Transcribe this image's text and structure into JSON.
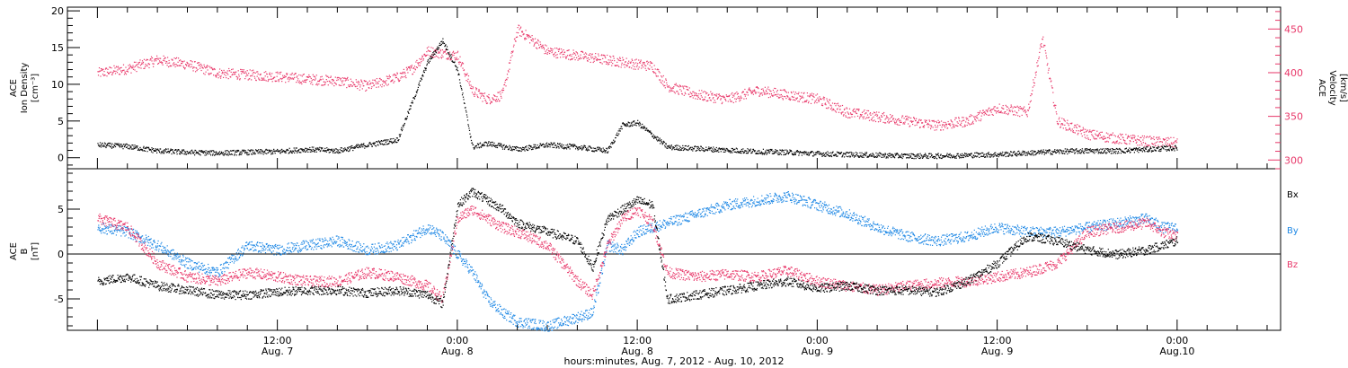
{
  "colors": {
    "black": "#000000",
    "pink": "#e8386a",
    "blue": "#1e88e5"
  },
  "chart_data": [
    {
      "type": "scatter",
      "panel": "top",
      "ylabel": [
        "ACE",
        "Ion Density",
        "[cm⁻³]"
      ],
      "ylim": [
        -1.5,
        20.5
      ],
      "yticks": [
        "0",
        "5",
        "10",
        "15",
        "20"
      ],
      "ylabel_right": [
        "ACE",
        "Velocity",
        "[km/s]"
      ],
      "ylim_right": [
        290,
        475
      ],
      "yticks_right": [
        "300",
        "350",
        "400",
        "450"
      ],
      "series": [
        {
          "axis": "left",
          "color": "#000000",
          "x_hours": [
            0,
            2,
            4,
            6,
            8,
            10,
            12,
            14,
            16,
            18,
            20,
            22,
            23,
            24,
            25,
            26,
            28,
            30,
            32,
            34,
            35,
            36,
            38,
            40,
            42,
            44,
            46,
            48,
            50,
            52,
            54,
            56,
            58,
            60,
            62,
            64,
            66,
            68,
            69,
            70,
            71,
            72
          ],
          "values": [
            1.8,
            1.6,
            1.0,
            0.8,
            0.7,
            0.8,
            0.9,
            1.2,
            1.0,
            1.8,
            2.5,
            13,
            16,
            12,
            1.5,
            2.0,
            1.2,
            1.8,
            1.5,
            1.0,
            4.5,
            4.8,
            1.5,
            1.3,
            1.1,
            0.9,
            0.8,
            0.6,
            0.5,
            0.4,
            0.3,
            0.3,
            0.4,
            0.5,
            0.7,
            0.9,
            1.0,
            1.0,
            1.1,
            1.2,
            1.3,
            1.4
          ]
        },
        {
          "axis": "right",
          "color": "#e8386a",
          "x_hours": [
            0,
            2,
            4,
            6,
            8,
            10,
            12,
            14,
            16,
            18,
            20,
            21,
            22,
            24,
            25,
            26,
            27,
            28,
            30,
            32,
            34,
            36,
            37,
            38,
            40,
            42,
            44,
            46,
            48,
            50,
            52,
            54,
            56,
            58,
            60,
            62,
            63,
            64,
            66,
            68,
            70,
            72
          ],
          "values": [
            400,
            405,
            415,
            410,
            400,
            398,
            396,
            393,
            391,
            385,
            395,
            405,
            425,
            420,
            380,
            370,
            375,
            450,
            425,
            420,
            415,
            410,
            408,
            385,
            375,
            370,
            380,
            375,
            370,
            355,
            350,
            345,
            340,
            345,
            360,
            355,
            440,
            345,
            330,
            325,
            322,
            320
          ]
        }
      ]
    },
    {
      "type": "scatter",
      "panel": "bottom",
      "ylabel": [
        "ACE",
        "B",
        "[nT]"
      ],
      "ylim": [
        -8.5,
        9.5
      ],
      "yticks": [
        "-5",
        "0",
        "5"
      ],
      "legend": [
        "Bx",
        "By",
        "Bz"
      ],
      "series": [
        {
          "name": "Bx",
          "color": "#000000",
          "x_hours": [
            0,
            2,
            4,
            6,
            8,
            10,
            12,
            14,
            16,
            18,
            20,
            22,
            23,
            24,
            25,
            26,
            27,
            28,
            30,
            32,
            33,
            34,
            35,
            36,
            37,
            38,
            40,
            42,
            44,
            46,
            48,
            50,
            52,
            54,
            56,
            58,
            60,
            62,
            64,
            66,
            68,
            70,
            71,
            72
          ],
          "values": [
            -3,
            -2.5,
            -3.5,
            -4,
            -4.5,
            -4.5,
            -4.2,
            -4.0,
            -4.0,
            -4.3,
            -4.0,
            -4.5,
            -5.5,
            5.5,
            7.0,
            6.0,
            5.0,
            3.5,
            2.5,
            1.5,
            -1.5,
            4.0,
            5.0,
            6.0,
            5.5,
            -5.0,
            -4.5,
            -4.0,
            -3.5,
            -3.0,
            -3.8,
            -3.5,
            -4.0,
            -4.0,
            -4.2,
            -3.0,
            -1.0,
            2.0,
            1.5,
            0.5,
            0.0,
            0.5,
            1.0,
            1.5
          ]
        },
        {
          "name": "By",
          "color": "#1e88e5",
          "x_hours": [
            0,
            2,
            4,
            6,
            8,
            10,
            12,
            14,
            16,
            18,
            20,
            22,
            23,
            24,
            25,
            26,
            27,
            28,
            30,
            32,
            33,
            34,
            35,
            36,
            37,
            38,
            40,
            42,
            44,
            46,
            48,
            50,
            52,
            54,
            56,
            58,
            60,
            62,
            64,
            66,
            68,
            70,
            71,
            72
          ],
          "values": [
            3.0,
            2.5,
            1.0,
            -1.0,
            -2.0,
            1.0,
            0.5,
            1.0,
            1.5,
            0.5,
            1.0,
            3.0,
            2.0,
            0.0,
            -2.0,
            -5.0,
            -6.5,
            -7.5,
            -8.0,
            -7.0,
            -6.5,
            1.0,
            0.5,
            2.5,
            3.0,
            3.5,
            4.5,
            5.5,
            6.0,
            6.5,
            5.5,
            4.5,
            3.0,
            2.0,
            1.5,
            2.0,
            3.0,
            2.5,
            2.5,
            3.0,
            3.5,
            4.0,
            3.0,
            3.0
          ]
        },
        {
          "name": "Bz",
          "color": "#e8386a",
          "x_hours": [
            0,
            2,
            4,
            6,
            8,
            10,
            12,
            14,
            16,
            18,
            20,
            22,
            23,
            24,
            25,
            26,
            27,
            28,
            30,
            32,
            33,
            34,
            35,
            36,
            37,
            38,
            40,
            42,
            44,
            46,
            48,
            50,
            52,
            54,
            56,
            58,
            60,
            62,
            64,
            66,
            68,
            70,
            71,
            72
          ],
          "values": [
            4.0,
            3.0,
            -1.0,
            -2.5,
            -3.0,
            -2.0,
            -2.5,
            -3.0,
            -3.0,
            -2.0,
            -2.5,
            -3.5,
            -5.0,
            4.0,
            5.0,
            4.0,
            3.0,
            2.5,
            1.0,
            -3.0,
            -4.5,
            1.0,
            4.0,
            5.0,
            3.5,
            -2.0,
            -2.5,
            -2.2,
            -2.5,
            -1.8,
            -3.0,
            -3.5,
            -4.0,
            -3.5,
            -3.2,
            -3.0,
            -2.5,
            -2.0,
            -1.0,
            2.5,
            3.0,
            3.5,
            2.5,
            2.0
          ]
        }
      ]
    }
  ],
  "x_axis": {
    "ticks": [
      {
        "hours": 12,
        "time": "12:00",
        "date": "Aug. 7"
      },
      {
        "hours": 24,
        "time": "0:00",
        "date": "Aug. 8"
      },
      {
        "hours": 36,
        "time": "12:00",
        "date": "Aug. 8"
      },
      {
        "hours": 48,
        "time": "0:00",
        "date": "Aug. 9"
      },
      {
        "hours": 60,
        "time": "12:00",
        "date": "Aug. 9"
      },
      {
        "hours": 72,
        "time": "0:00",
        "date": "Aug.10"
      }
    ],
    "xlim_hours": [
      -2.0,
      78.9
    ],
    "label": "hours:minutes, Aug.  7, 2012 - Aug. 10, 2012"
  }
}
